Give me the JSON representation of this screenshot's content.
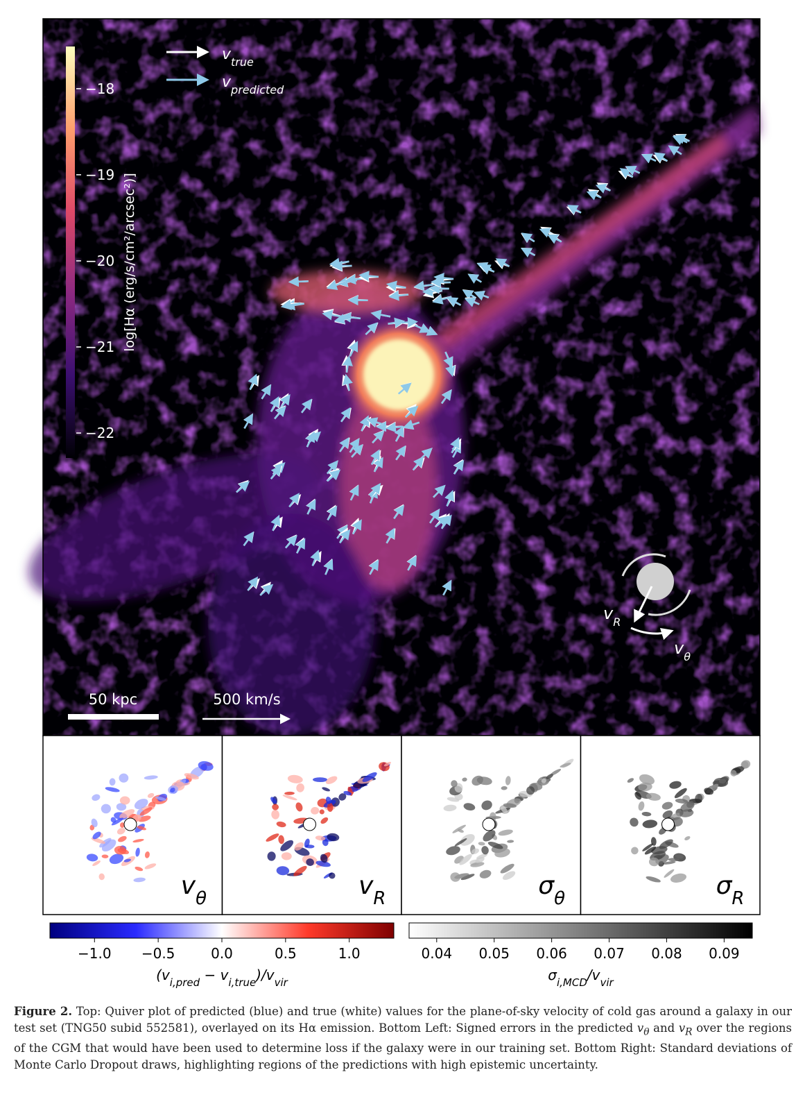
{
  "main_panel": {
    "colorbar": {
      "label": "log[Hα (erg/s/cm²/arcsec²)]",
      "lim": [
        -22.29,
        -17.51
      ],
      "colormap": [
        "#000004",
        "#3b0f70",
        "#8c2981",
        "#de4968",
        "#fe9f6d",
        "#fcfdbf"
      ],
      "ticks": [
        {
          "value": -18,
          "label": "−18"
        },
        {
          "value": -19,
          "label": "−19"
        },
        {
          "value": -20,
          "label": "−20"
        },
        {
          "value": -21,
          "label": "−21"
        },
        {
          "value": -22,
          "label": "−22"
        }
      ]
    },
    "legend": [
      {
        "symbol": "v",
        "subscript": "true",
        "color": "#ffffff"
      },
      {
        "symbol": "v",
        "subscript": "predicted",
        "color": "#8ec9e8"
      }
    ],
    "scale_bars": [
      {
        "label": "50 kpc"
      },
      {
        "label": "500 km/s"
      }
    ],
    "diagram_labels": [
      {
        "symbol": "v",
        "subscript": "R"
      },
      {
        "symbol": "v",
        "subscript": "θ"
      }
    ]
  },
  "small_panels": [
    {
      "symbol": "v",
      "subscript": "θ"
    },
    {
      "symbol": "v",
      "subscript": "R"
    },
    {
      "symbol": "σ",
      "subscript": "θ"
    },
    {
      "symbol": "σ",
      "subscript": "R"
    }
  ],
  "colorbars": [
    {
      "label": [
        {
          "text": "(v"
        },
        {
          "sub": "i,pred"
        },
        {
          "text": " − v"
        },
        {
          "sub": "i,true"
        },
        {
          "text": ")/v"
        },
        {
          "sub": "vir"
        }
      ],
      "lim": [
        -1.35,
        1.35
      ],
      "colormap": [
        "#00007f",
        "#2a2aff",
        "#ffffff",
        "#ff3a2a",
        "#7f0000"
      ],
      "ticks": [
        {
          "value": -1.0,
          "label": "−1.0"
        },
        {
          "value": -0.5,
          "label": "−0.5"
        },
        {
          "value": 0.0,
          "label": "0.0"
        },
        0.5,
        {
          "value": 1.0,
          "label": "1.0"
        }
      ]
    },
    {
      "label": [
        {
          "text": "σ"
        },
        {
          "sub": "i,MCD"
        },
        {
          "text": "/v"
        },
        {
          "sub": "vir"
        }
      ],
      "lim": [
        0.0352,
        0.0949
      ],
      "colormap": [
        "#ffffff",
        "#000000"
      ],
      "ticks": [
        0.04,
        0.05,
        0.06,
        0.07,
        0.08,
        0.09
      ]
    }
  ],
  "caption": {
    "label": "Figure 2.",
    "segments": [
      " Top: Quiver plot of predicted (blue) and true (white) values for the plane-of-sky velocity of cold gas around a galaxy in our test set (TNG50 subid 552581), overlayed on its Hα emission. Bottom Left: Signed errors in the predicted ",
      {
        "symbol": "v",
        "subscript": "θ"
      },
      " and ",
      {
        "symbol": "v",
        "subscript": "R"
      },
      " over the regions of the CGM that would have been used to determine loss if the galaxy were in our training set. Bottom Right: Standard deviations of Monte Carlo Dropout draws, highlighting regions of the predictions with high epistemic uncertainty."
    ]
  }
}
